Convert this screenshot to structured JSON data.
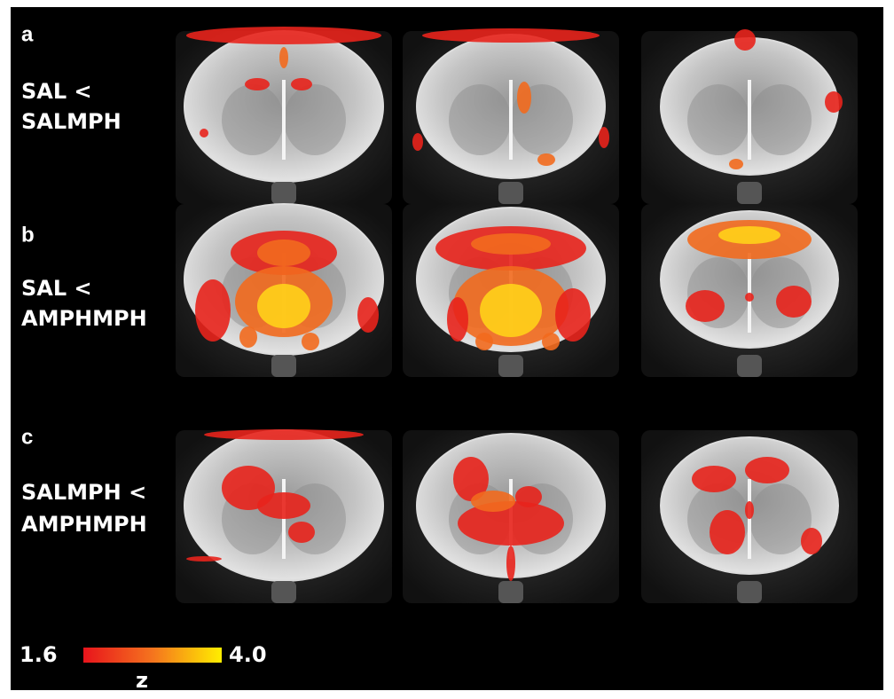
{
  "panels": [
    {
      "letter": "a",
      "label": [
        "SAL <",
        "SALMPH"
      ]
    },
    {
      "letter": "b",
      "label": [
        "SAL <",
        "AMPHMPH"
      ]
    },
    {
      "letter": "c",
      "label": [
        "SALMPH <",
        "AMPHMPH"
      ]
    }
  ],
  "colorbar": {
    "min": "1.6",
    "max": "4.0",
    "label": "z"
  }
}
